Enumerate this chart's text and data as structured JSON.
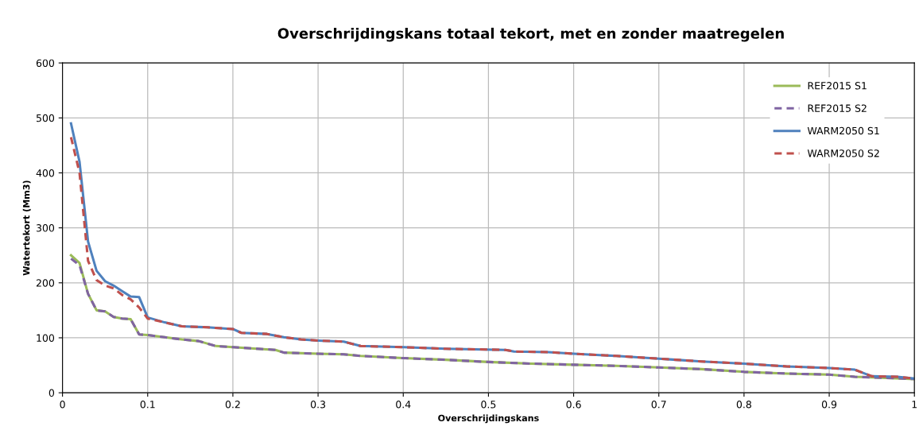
{
  "chart_data": {
    "type": "line",
    "title": "Overschrijdingskans totaal tekort, met en zonder maatregelen",
    "xlabel": "Overschrijdingskans",
    "ylabel": "Watertekort (Mm3)",
    "xlim": [
      0,
      1
    ],
    "xticks": [
      0,
      0.1,
      0.2,
      0.3,
      0.4,
      0.5,
      0.6,
      0.7,
      0.8,
      0.9,
      1
    ],
    "ylim": [
      0,
      600
    ],
    "yticks": [
      0,
      100,
      200,
      300,
      400,
      500,
      600
    ],
    "grid": true,
    "legend": "top right",
    "series": [
      {
        "name": "REF2015 S1",
        "color": "#9bbb59",
        "line_style": "solid",
        "x": [
          0.01,
          0.02,
          0.03,
          0.04,
          0.05,
          0.06,
          0.07,
          0.08,
          0.09,
          0.1,
          0.12,
          0.14,
          0.16,
          0.18,
          0.2,
          0.25,
          0.26,
          0.3,
          0.33,
          0.35,
          0.4,
          0.45,
          0.5,
          0.55,
          0.6,
          0.65,
          0.7,
          0.75,
          0.8,
          0.85,
          0.9,
          0.93,
          0.95,
          1.0
        ],
        "values": [
          250,
          236,
          180,
          150,
          148,
          138,
          135,
          134,
          106,
          105,
          101,
          97,
          94,
          85,
          83,
          78,
          73,
          71,
          70,
          67,
          63,
          60,
          56,
          53,
          51,
          49,
          46,
          43,
          38,
          35,
          33,
          29,
          28,
          25
        ]
      },
      {
        "name": "REF2015 S2",
        "color": "#8064a2",
        "line_style": "dashed",
        "x": [
          0.01,
          0.02,
          0.03,
          0.04,
          0.05,
          0.06,
          0.07,
          0.08,
          0.09,
          0.1,
          0.12,
          0.14,
          0.16,
          0.18,
          0.2,
          0.25,
          0.26,
          0.3,
          0.33,
          0.35,
          0.4,
          0.45,
          0.5,
          0.55,
          0.6,
          0.65,
          0.7,
          0.75,
          0.8,
          0.85,
          0.9,
          0.93,
          0.95,
          1.0
        ],
        "values": [
          244,
          232,
          180,
          150,
          148,
          138,
          135,
          134,
          106,
          105,
          101,
          97,
          94,
          85,
          83,
          78,
          73,
          71,
          70,
          67,
          63,
          60,
          56,
          53,
          51,
          49,
          46,
          43,
          38,
          35,
          33,
          29,
          28,
          25
        ]
      },
      {
        "name": "WARM2050 S1",
        "color": "#4f81bd",
        "line_style": "solid",
        "x": [
          0.01,
          0.02,
          0.03,
          0.04,
          0.05,
          0.06,
          0.07,
          0.08,
          0.09,
          0.1,
          0.12,
          0.14,
          0.17,
          0.2,
          0.21,
          0.24,
          0.26,
          0.28,
          0.3,
          0.33,
          0.35,
          0.4,
          0.45,
          0.52,
          0.53,
          0.57,
          0.6,
          0.65,
          0.7,
          0.72,
          0.75,
          0.8,
          0.85,
          0.9,
          0.93,
          0.95,
          0.98,
          1.0
        ],
        "values": [
          490,
          420,
          275,
          222,
          203,
          195,
          185,
          175,
          174,
          137,
          128,
          121,
          119,
          116,
          109,
          107,
          101,
          97,
          95,
          93,
          85,
          83,
          80,
          78,
          75,
          74,
          71,
          67,
          62,
          60,
          57,
          53,
          48,
          45,
          42,
          30,
          29,
          26
        ]
      },
      {
        "name": "WARM2050 S2",
        "color": "#c0504d",
        "line_style": "dashed",
        "x": [
          0.01,
          0.02,
          0.03,
          0.04,
          0.05,
          0.06,
          0.07,
          0.08,
          0.09,
          0.1,
          0.12,
          0.14,
          0.17,
          0.2,
          0.21,
          0.24,
          0.26,
          0.28,
          0.3,
          0.33,
          0.35,
          0.4,
          0.45,
          0.52,
          0.53,
          0.57,
          0.6,
          0.65,
          0.7,
          0.72,
          0.75,
          0.8,
          0.85,
          0.9,
          0.93,
          0.95,
          0.98,
          1.0
        ],
        "values": [
          465,
          400,
          240,
          205,
          195,
          190,
          178,
          170,
          155,
          135,
          128,
          121,
          119,
          116,
          109,
          107,
          101,
          97,
          95,
          93,
          85,
          83,
          80,
          78,
          75,
          74,
          71,
          67,
          62,
          60,
          57,
          53,
          48,
          45,
          42,
          30,
          29,
          26
        ]
      }
    ]
  }
}
